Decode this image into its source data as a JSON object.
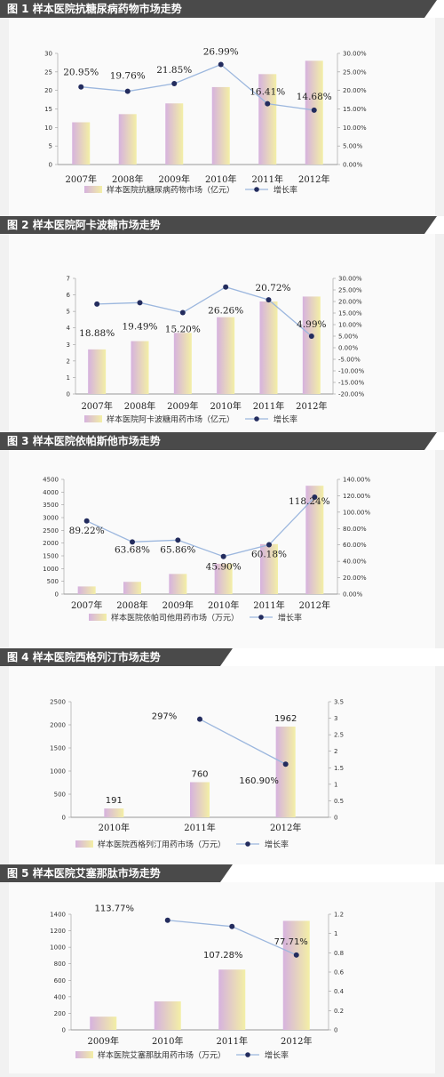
{
  "chart_data": [
    {
      "type": "bar",
      "title": "图 1  样本医院抗糖尿病药物市场走势",
      "categories": [
        "2007年",
        "2008年",
        "2009年",
        "2010年",
        "2011年",
        "2012年"
      ],
      "series": [
        {
          "name": "样本医院抗糖尿病药物市场（亿元）",
          "type": "bar",
          "axis": "left",
          "values": [
            11.4,
            13.6,
            16.5,
            20.9,
            24.4,
            28.0
          ]
        },
        {
          "name": "增长率",
          "type": "line",
          "axis": "right",
          "values": [
            20.95,
            19.76,
            21.85,
            26.99,
            16.41,
            14.68
          ]
        }
      ],
      "data_labels": [
        "20.95%",
        "19.76%",
        "21.85%",
        "26.99%",
        "16.41%",
        "14.68%"
      ],
      "y_ticks": [
        "0",
        "5",
        "10",
        "15",
        "20",
        "25",
        "30"
      ],
      "y2_ticks": [
        "0.00%",
        "5.00%",
        "10.00%",
        "15.00%",
        "20.00%",
        "25.00%",
        "30.00%"
      ],
      "ylim": [
        0,
        30
      ],
      "y2lim": [
        0,
        30
      ],
      "grid": false,
      "legend": "bottom"
    },
    {
      "type": "bar",
      "title": "图 2  样本医院阿卡波糖市场走势",
      "categories": [
        "2007年",
        "2008年",
        "2009年",
        "2010年",
        "2011年",
        "2012年"
      ],
      "series": [
        {
          "name": "样本医院阿卡波糖用药市场（亿元）",
          "type": "bar",
          "axis": "left",
          "values": [
            2.7,
            3.2,
            3.7,
            4.65,
            5.6,
            5.9
          ]
        },
        {
          "name": "增长率",
          "type": "line",
          "axis": "right",
          "values": [
            18.88,
            19.49,
            15.2,
            26.26,
            20.72,
            4.99
          ]
        }
      ],
      "data_labels": [
        "18.88%",
        "19.49%",
        "15.20%",
        "26.26%",
        "20.72%",
        "4.99%"
      ],
      "y_ticks": [
        "0",
        "1",
        "2",
        "3",
        "4",
        "5",
        "6",
        "7"
      ],
      "y2_ticks": [
        "-20.00%",
        "-15.00%",
        "-10.00%",
        "-5.00%",
        "0.00%",
        "5.00%",
        "10.00%",
        "15.00%",
        "20.00%",
        "25.00%",
        "30.00%"
      ],
      "ylim": [
        0,
        7
      ],
      "y2lim": [
        -20,
        30
      ],
      "grid": false,
      "legend": "bottom"
    },
    {
      "type": "bar",
      "title": "图 3  样本医院依帕斯他市场走势",
      "categories": [
        "2007年",
        "2008年",
        "2009年",
        "2010年",
        "2011年",
        "2012年"
      ],
      "series": [
        {
          "name": "样本医院依帕司他用药市场（万元）",
          "type": "bar",
          "axis": "left",
          "values": [
            300,
            480,
            790,
            1190,
            1960,
            4250
          ]
        },
        {
          "name": "增长率",
          "type": "line",
          "axis": "right",
          "values": [
            89.22,
            63.68,
            65.86,
            45.9,
            60.18,
            118.24
          ]
        }
      ],
      "data_labels": [
        "89.22%",
        "63.68%",
        "65.86%",
        "45.90%",
        "60.18%",
        "118.24%"
      ],
      "y_ticks": [
        "0",
        "500",
        "1000",
        "1500",
        "2000",
        "2500",
        "3000",
        "3500",
        "4000",
        "4500"
      ],
      "y2_ticks": [
        "0.00%",
        "20.00%",
        "40.00%",
        "60.00%",
        "80.00%",
        "100.00%",
        "120.00%",
        "140.00%"
      ],
      "ylim": [
        0,
        4500
      ],
      "y2lim": [
        0,
        140
      ],
      "grid": false,
      "legend": "bottom"
    },
    {
      "type": "bar",
      "title": "图 4  样本医院西格列汀市场走势",
      "categories": [
        "2010年",
        "2011年",
        "2012年"
      ],
      "series": [
        {
          "name": "样本医院西格列汀用药市场（万元）",
          "type": "bar",
          "axis": "left",
          "values": [
            191,
            760,
            1962
          ]
        },
        {
          "name": "增长率",
          "type": "line",
          "axis": "right",
          "values": [
            null,
            2.97,
            1.609
          ]
        }
      ],
      "bar_labels": [
        "191",
        "760",
        "1962"
      ],
      "data_labels": [
        null,
        "297%",
        "160.90%"
      ],
      "y_ticks": [
        "0",
        "500",
        "1000",
        "1500",
        "2000",
        "2500"
      ],
      "y2_ticks": [
        "0",
        "0.5",
        "1",
        "1.5",
        "2",
        "2.5",
        "3",
        "3.5"
      ],
      "ylim": [
        0,
        2500
      ],
      "y2lim": [
        0,
        3.5
      ],
      "grid": false,
      "legend": "bottom"
    },
    {
      "type": "bar",
      "title": "图 5  样本医院艾塞那肽市场走势",
      "categories": [
        "2009年",
        "2010年",
        "2011年",
        "2012年"
      ],
      "series": [
        {
          "name": "样本医院艾塞那肽用药市场（万元）",
          "type": "bar",
          "axis": "left",
          "values": [
            160,
            345,
            730,
            1320
          ]
        },
        {
          "name": "增长率",
          "type": "line",
          "axis": "right",
          "values": [
            null,
            1.1377,
            1.0728,
            0.7771
          ]
        }
      ],
      "data_labels": [
        null,
        "113.77%",
        "107.28%",
        "77.71%"
      ],
      "y_ticks": [
        "0",
        "200",
        "400",
        "600",
        "800",
        "1000",
        "1200",
        "1400"
      ],
      "y2_ticks": [
        "0",
        "0.2",
        "0.4",
        "0.6",
        "0.8",
        "1",
        "1.2"
      ],
      "ylim": [
        0,
        1400
      ],
      "y2lim": [
        0,
        1.2
      ],
      "grid": false,
      "legend": "bottom"
    }
  ],
  "colors": {
    "banner": "#4a4a4a",
    "line": "#9cb7de",
    "marker": "#232c5e",
    "bar_left": "#d6b2de",
    "bar_right": "#f3efa6"
  }
}
